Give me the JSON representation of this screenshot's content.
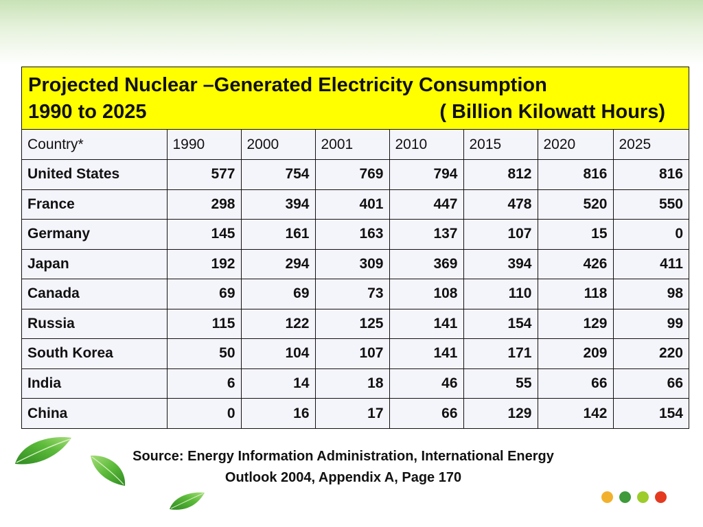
{
  "slide": {
    "title_line1": "Projected Nuclear –Generated Electricity Consumption",
    "title_line2": "1990 to 2025",
    "units": "( Billion Kilowatt Hours)",
    "source_line1": "Source: Energy Information Administration, International Energy",
    "source_line2": "Outlook 2004, Appendix A, Page 170"
  },
  "table": {
    "headers": [
      "Country*",
      "1990",
      "2000",
      "2001",
      "2010",
      "2015",
      "2020",
      "2025"
    ],
    "rows": [
      [
        "United States",
        "577",
        "754",
        "769",
        "794",
        "812",
        "816",
        "816"
      ],
      [
        "France",
        "298",
        "394",
        "401",
        "447",
        "478",
        "520",
        "550"
      ],
      [
        "Germany",
        "145",
        "161",
        "163",
        "137",
        "107",
        "15",
        "0"
      ],
      [
        "Japan",
        "192",
        "294",
        "309",
        "369",
        "394",
        "426",
        "411"
      ],
      [
        "Canada",
        "69",
        "69",
        "73",
        "108",
        "110",
        "118",
        "98"
      ],
      [
        "Russia",
        "115",
        "122",
        "125",
        "141",
        "154",
        "129",
        "99"
      ],
      [
        "South Korea",
        "50",
        "104",
        "107",
        "141",
        "171",
        "209",
        "220"
      ],
      [
        "India",
        "6",
        "14",
        "18",
        "46",
        "55",
        "66",
        "66"
      ],
      [
        "China",
        "0",
        "16",
        "17",
        "66",
        "129",
        "142",
        "154"
      ]
    ]
  },
  "decor": {
    "header_color": "#ffff00",
    "dot_colors": [
      "#f2b12c",
      "#3e9a3a",
      "#9dcc2b",
      "#e43a1f"
    ],
    "leaf_color": "#46a52e"
  }
}
